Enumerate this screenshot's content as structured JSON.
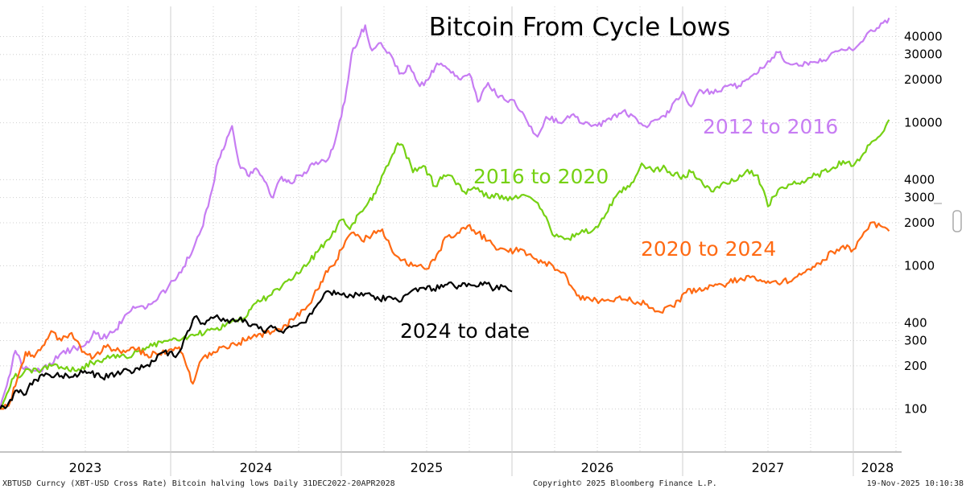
{
  "chart_data": {
    "type": "line",
    "title": "Bitcoin From Cycle Lows",
    "y_scale": "log",
    "ylim": [
      50,
      65000
    ],
    "y_ticks": [
      100,
      200,
      300,
      400,
      1000,
      2000,
      3000,
      4000,
      10000,
      20000,
      30000,
      40000
    ],
    "x_categories": [
      "2023",
      "2024",
      "2025",
      "2026",
      "2027",
      "2028"
    ],
    "grid": true,
    "legend": "inline labels",
    "series": [
      {
        "name": "2012 to 2016",
        "color": "#c77df3",
        "points": [
          [
            0,
            100
          ],
          [
            0.05,
            165
          ],
          [
            0.09,
            255
          ],
          [
            0.14,
            190
          ],
          [
            0.2,
            185
          ],
          [
            0.28,
            195
          ],
          [
            0.35,
            240
          ],
          [
            0.42,
            260
          ],
          [
            0.5,
            280
          ],
          [
            0.55,
            350
          ],
          [
            0.6,
            310
          ],
          [
            0.68,
            360
          ],
          [
            0.72,
            420
          ],
          [
            0.78,
            520
          ],
          [
            0.85,
            500
          ],
          [
            0.9,
            560
          ],
          [
            0.98,
            690
          ],
          [
            1.05,
            900
          ],
          [
            1.12,
            1200
          ],
          [
            1.18,
            1800
          ],
          [
            1.22,
            2600
          ],
          [
            1.28,
            5500
          ],
          [
            1.32,
            7000
          ],
          [
            1.36,
            9500
          ],
          [
            1.4,
            5200
          ],
          [
            1.45,
            4300
          ],
          [
            1.5,
            4800
          ],
          [
            1.56,
            3800
          ],
          [
            1.6,
            3000
          ],
          [
            1.65,
            4200
          ],
          [
            1.7,
            3800
          ],
          [
            1.76,
            4300
          ],
          [
            1.84,
            5100
          ],
          [
            1.92,
            5500
          ],
          [
            1.97,
            8000
          ],
          [
            2.02,
            14000
          ],
          [
            2.06,
            30000
          ],
          [
            2.1,
            38000
          ],
          [
            2.14,
            48000
          ],
          [
            2.18,
            32000
          ],
          [
            2.22,
            36000
          ],
          [
            2.28,
            31000
          ],
          [
            2.34,
            22000
          ],
          [
            2.4,
            25000
          ],
          [
            2.46,
            18000
          ],
          [
            2.52,
            21000
          ],
          [
            2.56,
            26000
          ],
          [
            2.62,
            24000
          ],
          [
            2.7,
            20000
          ],
          [
            2.75,
            22000
          ],
          [
            2.8,
            14000
          ],
          [
            2.86,
            19000
          ],
          [
            2.92,
            15000
          ],
          [
            3.0,
            14500
          ],
          [
            3.05,
            12000
          ],
          [
            3.1,
            9500
          ],
          [
            3.15,
            8000
          ],
          [
            3.2,
            11000
          ],
          [
            3.28,
            10000
          ],
          [
            3.36,
            11500
          ],
          [
            3.42,
            9800
          ],
          [
            3.5,
            9500
          ],
          [
            3.58,
            10500
          ],
          [
            3.65,
            12000
          ],
          [
            3.72,
            11000
          ],
          [
            3.78,
            9500
          ],
          [
            3.85,
            10500
          ],
          [
            3.9,
            11000
          ],
          [
            3.95,
            14000
          ],
          [
            4.0,
            16500
          ],
          [
            4.05,
            13000
          ],
          [
            4.1,
            17000
          ],
          [
            4.18,
            16000
          ],
          [
            4.26,
            18000
          ],
          [
            4.34,
            18000
          ],
          [
            4.42,
            22000
          ],
          [
            4.5,
            27000
          ],
          [
            4.56,
            31000
          ],
          [
            4.62,
            26000
          ],
          [
            4.68,
            25000
          ],
          [
            4.76,
            26500
          ],
          [
            4.85,
            28000
          ],
          [
            4.92,
            32000
          ],
          [
            5.02,
            34000
          ],
          [
            5.08,
            42000
          ],
          [
            5.15,
            46000
          ],
          [
            5.21,
            54000
          ]
        ]
      },
      {
        "name": "2016 to 2020",
        "color": "#76d114",
        "points": [
          [
            0,
            100
          ],
          [
            0.04,
            128
          ],
          [
            0.08,
            165
          ],
          [
            0.14,
            180
          ],
          [
            0.22,
            185
          ],
          [
            0.3,
            200
          ],
          [
            0.38,
            190
          ],
          [
            0.46,
            190
          ],
          [
            0.54,
            210
          ],
          [
            0.62,
            225
          ],
          [
            0.7,
            230
          ],
          [
            0.78,
            240
          ],
          [
            0.86,
            270
          ],
          [
            0.95,
            290
          ],
          [
            1.05,
            300
          ],
          [
            1.15,
            330
          ],
          [
            1.25,
            360
          ],
          [
            1.35,
            400
          ],
          [
            1.45,
            450
          ],
          [
            1.5,
            550
          ],
          [
            1.58,
            620
          ],
          [
            1.66,
            750
          ],
          [
            1.76,
            900
          ],
          [
            1.86,
            1250
          ],
          [
            1.94,
            1600
          ],
          [
            2.0,
            2100
          ],
          [
            2.05,
            1800
          ],
          [
            2.1,
            2300
          ],
          [
            2.16,
            2800
          ],
          [
            2.2,
            3200
          ],
          [
            2.25,
            4500
          ],
          [
            2.3,
            6000
          ],
          [
            2.33,
            7200
          ],
          [
            2.37,
            6500
          ],
          [
            2.42,
            4500
          ],
          [
            2.48,
            5000
          ],
          [
            2.55,
            3600
          ],
          [
            2.6,
            4300
          ],
          [
            2.66,
            4000
          ],
          [
            2.72,
            3300
          ],
          [
            2.8,
            3500
          ],
          [
            2.86,
            3000
          ],
          [
            2.94,
            3100
          ],
          [
            3.0,
            2900
          ],
          [
            3.08,
            3100
          ],
          [
            3.14,
            2800
          ],
          [
            3.2,
            2200
          ],
          [
            3.25,
            1600
          ],
          [
            3.32,
            1550
          ],
          [
            3.4,
            1700
          ],
          [
            3.48,
            1800
          ],
          [
            3.55,
            2300
          ],
          [
            3.62,
            3200
          ],
          [
            3.7,
            3800
          ],
          [
            3.76,
            5200
          ],
          [
            3.82,
            4700
          ],
          [
            3.9,
            4800
          ],
          [
            3.98,
            4200
          ],
          [
            4.05,
            4500
          ],
          [
            4.12,
            3700
          ],
          [
            4.18,
            3300
          ],
          [
            4.25,
            3800
          ],
          [
            4.3,
            3900
          ],
          [
            4.38,
            4700
          ],
          [
            4.44,
            4300
          ],
          [
            4.5,
            2600
          ],
          [
            4.56,
            3400
          ],
          [
            4.62,
            3700
          ],
          [
            4.7,
            3900
          ],
          [
            4.78,
            4300
          ],
          [
            4.86,
            4600
          ],
          [
            4.94,
            5400
          ],
          [
            5.0,
            5000
          ],
          [
            5.06,
            6100
          ],
          [
            5.12,
            7500
          ],
          [
            5.18,
            8800
          ],
          [
            5.21,
            10500
          ]
        ]
      },
      {
        "name": "2020 to 2024",
        "color": "#ff6a13",
        "points": [
          [
            0,
            100
          ],
          [
            0.05,
            105
          ],
          [
            0.1,
            160
          ],
          [
            0.15,
            250
          ],
          [
            0.2,
            230
          ],
          [
            0.26,
            280
          ],
          [
            0.3,
            350
          ],
          [
            0.36,
            300
          ],
          [
            0.42,
            340
          ],
          [
            0.48,
            250
          ],
          [
            0.55,
            230
          ],
          [
            0.62,
            270
          ],
          [
            0.7,
            255
          ],
          [
            0.78,
            270
          ],
          [
            0.86,
            240
          ],
          [
            0.92,
            240
          ],
          [
            0.98,
            250
          ],
          [
            1.05,
            270
          ],
          [
            1.1,
            190
          ],
          [
            1.13,
            150
          ],
          [
            1.18,
            220
          ],
          [
            1.25,
            250
          ],
          [
            1.32,
            270
          ],
          [
            1.4,
            290
          ],
          [
            1.48,
            320
          ],
          [
            1.56,
            340
          ],
          [
            1.64,
            360
          ],
          [
            1.72,
            420
          ],
          [
            1.8,
            520
          ],
          [
            1.86,
            680
          ],
          [
            1.9,
            850
          ],
          [
            1.95,
            1000
          ],
          [
            2.0,
            1300
          ],
          [
            2.06,
            1700
          ],
          [
            2.12,
            1500
          ],
          [
            2.18,
            1650
          ],
          [
            2.24,
            1800
          ],
          [
            2.3,
            1250
          ],
          [
            2.36,
            1100
          ],
          [
            2.42,
            1000
          ],
          [
            2.5,
            950
          ],
          [
            2.56,
            1200
          ],
          [
            2.62,
            1600
          ],
          [
            2.68,
            1700
          ],
          [
            2.74,
            1900
          ],
          [
            2.8,
            1700
          ],
          [
            2.86,
            1500
          ],
          [
            2.92,
            1300
          ],
          [
            2.98,
            1250
          ],
          [
            3.06,
            1300
          ],
          [
            3.12,
            1150
          ],
          [
            3.18,
            1050
          ],
          [
            3.24,
            1000
          ],
          [
            3.3,
            900
          ],
          [
            3.38,
            620
          ],
          [
            3.46,
            580
          ],
          [
            3.54,
            570
          ],
          [
            3.62,
            600
          ],
          [
            3.7,
            570
          ],
          [
            3.78,
            540
          ],
          [
            3.86,
            480
          ],
          [
            3.94,
            520
          ],
          [
            4.02,
            650
          ],
          [
            4.1,
            700
          ],
          [
            4.18,
            720
          ],
          [
            4.26,
            750
          ],
          [
            4.34,
            820
          ],
          [
            4.42,
            840
          ],
          [
            4.5,
            780
          ],
          [
            4.58,
            760
          ],
          [
            4.66,
            830
          ],
          [
            4.74,
            950
          ],
          [
            4.82,
            1100
          ],
          [
            4.88,
            1250
          ],
          [
            4.94,
            1380
          ],
          [
            5.0,
            1300
          ],
          [
            5.05,
            1600
          ],
          [
            5.1,
            2000
          ],
          [
            5.16,
            1900
          ],
          [
            5.21,
            1750
          ]
        ]
      },
      {
        "name": "2024 to date",
        "color": "#000000",
        "points": [
          [
            0,
            100
          ],
          [
            0.05,
            110
          ],
          [
            0.1,
            135
          ],
          [
            0.14,
            125
          ],
          [
            0.2,
            160
          ],
          [
            0.28,
            175
          ],
          [
            0.36,
            170
          ],
          [
            0.44,
            175
          ],
          [
            0.52,
            180
          ],
          [
            0.6,
            165
          ],
          [
            0.68,
            175
          ],
          [
            0.76,
            185
          ],
          [
            0.84,
            195
          ],
          [
            0.9,
            215
          ],
          [
            0.96,
            250
          ],
          [
            1.04,
            240
          ],
          [
            1.1,
            350
          ],
          [
            1.14,
            440
          ],
          [
            1.2,
            390
          ],
          [
            1.26,
            440
          ],
          [
            1.32,
            410
          ],
          [
            1.4,
            420
          ],
          [
            1.48,
            390
          ],
          [
            1.54,
            350
          ],
          [
            1.6,
            370
          ],
          [
            1.66,
            340
          ],
          [
            1.72,
            380
          ],
          [
            1.78,
            400
          ],
          [
            1.84,
            500
          ],
          [
            1.9,
            640
          ],
          [
            1.98,
            650
          ],
          [
            2.06,
            620
          ],
          [
            2.14,
            640
          ],
          [
            2.2,
            580
          ],
          [
            2.28,
            610
          ],
          [
            2.34,
            560
          ],
          [
            2.4,
            650
          ],
          [
            2.46,
            700
          ],
          [
            2.54,
            690
          ],
          [
            2.62,
            740
          ],
          [
            2.7,
            720
          ],
          [
            2.78,
            730
          ],
          [
            2.84,
            770
          ],
          [
            2.9,
            690
          ],
          [
            2.96,
            720
          ],
          [
            3.0,
            660
          ]
        ]
      }
    ],
    "annotations": [
      "2012 to 2016",
      "2016 to 2020",
      "2020 to 2024",
      "2024 to date"
    ]
  },
  "footer": {
    "left": "XBTUSD Curncy (XBT-USD Cross Rate) Bitcoin halving lows Daily 31DEC2022-20APR2028",
    "center": "Copyright© 2025 Bloomberg Finance L.P.",
    "right": "19-Nov-2025 10:10:38"
  },
  "colors": {
    "grid": "#cfcfcf",
    "axis": "#888888"
  }
}
